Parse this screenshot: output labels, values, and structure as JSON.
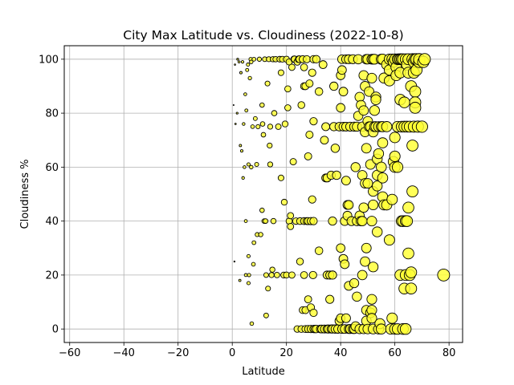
{
  "chart_data": {
    "type": "scatter",
    "title": "City Max Latitude vs. Cloudiness (2022-10-8)",
    "xlabel": "Latitude",
    "ylabel": "Cloudiness %",
    "xlim": [
      -62,
      85
    ],
    "ylim": [
      -5,
      105
    ],
    "xticks": [
      -60,
      -40,
      -20,
      0,
      20,
      40,
      60,
      80
    ],
    "yticks": [
      0,
      20,
      40,
      60,
      80,
      100
    ],
    "grid": true,
    "marker_face_color": "#ffff33",
    "marker_edge_color": "#000000",
    "marker_size_encodes": "latitude",
    "points": [
      [
        0.5,
        83
      ],
      [
        0.8,
        25
      ],
      [
        1,
        98
      ],
      [
        1.2,
        76
      ],
      [
        1.8,
        80
      ],
      [
        2,
        100
      ],
      [
        2.5,
        99
      ],
      [
        2.8,
        18
      ],
      [
        3,
        68
      ],
      [
        3.2,
        95
      ],
      [
        3.5,
        66
      ],
      [
        3.8,
        99
      ],
      [
        4,
        56
      ],
      [
        4.2,
        76
      ],
      [
        4.5,
        60
      ],
      [
        4.8,
        87
      ],
      [
        5,
        40
      ],
      [
        5,
        20
      ],
      [
        5.2,
        81
      ],
      [
        5.5,
        96
      ],
      [
        5.8,
        98
      ],
      [
        6,
        61
      ],
      [
        6,
        27
      ],
      [
        6,
        17
      ],
      [
        6.2,
        20
      ],
      [
        6.5,
        93
      ],
      [
        6.8,
        100
      ],
      [
        7,
        99
      ],
      [
        7,
        60
      ],
      [
        7.2,
        2
      ],
      [
        7.5,
        75
      ],
      [
        7.8,
        24
      ],
      [
        8,
        32
      ],
      [
        8,
        100
      ],
      [
        8.5,
        78
      ],
      [
        9,
        61
      ],
      [
        9.2,
        35
      ],
      [
        9.5,
        75
      ],
      [
        10,
        100
      ],
      [
        10.5,
        35
      ],
      [
        11,
        83
      ],
      [
        11,
        44
      ],
      [
        11.2,
        76
      ],
      [
        11.5,
        72
      ],
      [
        11.8,
        40
      ],
      [
        12,
        100
      ],
      [
        12.3,
        40
      ],
      [
        12.5,
        5
      ],
      [
        12.5,
        20
      ],
      [
        13,
        91
      ],
      [
        13.2,
        15
      ],
      [
        13.5,
        100
      ],
      [
        13.8,
        68
      ],
      [
        14,
        61
      ],
      [
        14,
        75
      ],
      [
        14.5,
        20
      ],
      [
        14.8,
        22
      ],
      [
        15,
        100
      ],
      [
        15.2,
        40
      ],
      [
        15.5,
        80
      ],
      [
        16,
        100
      ],
      [
        16.5,
        20
      ],
      [
        17,
        75
      ],
      [
        17.5,
        100
      ],
      [
        18,
        95
      ],
      [
        18,
        56
      ],
      [
        18.5,
        100
      ],
      [
        19,
        20
      ],
      [
        19.2,
        47
      ],
      [
        19.5,
        76
      ],
      [
        20,
        100
      ],
      [
        20,
        20
      ],
      [
        20.5,
        89
      ],
      [
        20.5,
        82
      ],
      [
        21,
        99
      ],
      [
        21,
        40
      ],
      [
        21.5,
        42
      ],
      [
        21.5,
        38
      ],
      [
        22,
        20
      ],
      [
        22,
        97
      ],
      [
        22.5,
        62
      ],
      [
        22.8,
        100
      ],
      [
        23,
        100
      ],
      [
        23.5,
        40
      ],
      [
        24,
        0
      ],
      [
        24,
        99
      ],
      [
        24.5,
        100
      ],
      [
        24.8,
        100
      ],
      [
        25,
        25
      ],
      [
        25,
        40
      ],
      [
        25.5,
        83
      ],
      [
        25.5,
        0
      ],
      [
        26,
        100
      ],
      [
        26,
        100
      ],
      [
        26,
        7
      ],
      [
        26.5,
        40
      ],
      [
        26.5,
        97
      ],
      [
        26.5,
        90
      ],
      [
        26.5,
        20
      ],
      [
        27,
        0
      ],
      [
        27,
        90
      ],
      [
        27,
        7
      ],
      [
        27.5,
        100
      ],
      [
        27.5,
        40
      ],
      [
        28,
        11
      ],
      [
        28,
        64
      ],
      [
        28,
        40
      ],
      [
        28,
        0
      ],
      [
        28.5,
        72
      ],
      [
        28.5,
        91
      ],
      [
        29,
        8
      ],
      [
        29,
        40
      ],
      [
        29,
        0
      ],
      [
        29.5,
        48
      ],
      [
        29.5,
        95
      ],
      [
        29.8,
        20
      ],
      [
        30,
        100
      ],
      [
        30,
        77
      ],
      [
        30,
        6
      ],
      [
        30,
        40
      ],
      [
        30,
        0
      ],
      [
        30.5,
        0
      ],
      [
        31,
        100
      ],
      [
        31,
        0
      ],
      [
        32,
        88
      ],
      [
        32,
        29
      ],
      [
        32.5,
        0
      ],
      [
        33,
        0
      ],
      [
        33,
        0
      ],
      [
        33.5,
        98
      ],
      [
        34,
        70
      ],
      [
        34,
        0
      ],
      [
        34.5,
        56
      ],
      [
        34.5,
        75
      ],
      [
        35,
        0
      ],
      [
        35,
        20
      ],
      [
        35,
        56
      ],
      [
        35.5,
        0
      ],
      [
        36,
        20
      ],
      [
        36,
        11
      ],
      [
        36.5,
        0
      ],
      [
        36.5,
        57
      ],
      [
        37,
        40
      ],
      [
        37,
        0
      ],
      [
        37,
        20
      ],
      [
        37.5,
        90
      ],
      [
        37.5,
        75
      ],
      [
        38,
        0
      ],
      [
        38,
        67
      ],
      [
        38.5,
        57
      ],
      [
        39,
        0
      ],
      [
        39.5,
        75
      ],
      [
        39.5,
        3
      ],
      [
        40,
        82
      ],
      [
        40,
        94
      ],
      [
        40,
        4
      ],
      [
        40,
        30
      ],
      [
        40.5,
        0
      ],
      [
        40.5,
        100
      ],
      [
        40.5,
        96
      ],
      [
        41,
        26
      ],
      [
        41,
        75
      ],
      [
        41,
        88
      ],
      [
        41.5,
        40
      ],
      [
        41.5,
        24
      ],
      [
        41.5,
        0
      ],
      [
        42,
        4
      ],
      [
        42,
        75
      ],
      [
        42,
        100
      ],
      [
        42,
        55
      ],
      [
        42.5,
        46
      ],
      [
        42.5,
        42
      ],
      [
        43,
        0
      ],
      [
        43,
        46
      ],
      [
        43,
        16
      ],
      [
        43,
        100
      ],
      [
        43.5,
        75
      ],
      [
        43.5,
        0
      ],
      [
        44,
        40
      ],
      [
        44.5,
        0
      ],
      [
        44.5,
        100
      ],
      [
        45,
        75
      ],
      [
        45,
        17
      ],
      [
        45,
        0
      ],
      [
        45.5,
        60
      ],
      [
        45.5,
        1
      ],
      [
        46,
        12
      ],
      [
        46,
        75
      ],
      [
        46,
        40
      ],
      [
        46.5,
        79
      ],
      [
        46.5,
        100
      ],
      [
        47,
        42
      ],
      [
        47,
        0
      ],
      [
        47,
        86
      ],
      [
        47.5,
        83
      ],
      [
        47.5,
        40
      ],
      [
        48,
        57
      ],
      [
        48,
        75
      ],
      [
        48,
        40
      ],
      [
        48,
        20
      ],
      [
        48.5,
        94
      ],
      [
        48.5,
        81
      ],
      [
        48.5,
        45
      ],
      [
        48.5,
        0
      ],
      [
        49,
        73
      ],
      [
        49,
        90
      ],
      [
        49,
        54
      ],
      [
        49,
        25
      ],
      [
        49.5,
        100
      ],
      [
        49.5,
        67
      ],
      [
        49.5,
        30
      ],
      [
        49.5,
        7
      ],
      [
        49.5,
        3
      ],
      [
        50,
        100
      ],
      [
        50,
        77
      ],
      [
        50,
        54
      ],
      [
        50,
        0
      ],
      [
        50.5,
        88
      ],
      [
        50.5,
        75
      ],
      [
        51,
        75
      ],
      [
        51,
        61
      ],
      [
        51,
        6
      ],
      [
        51.5,
        100
      ],
      [
        51.5,
        93
      ],
      [
        51.5,
        40
      ],
      [
        51.5,
        11
      ],
      [
        51.5,
        7
      ],
      [
        51.5,
        4
      ],
      [
        52,
        100
      ],
      [
        52,
        73
      ],
      [
        52,
        51
      ],
      [
        52,
        46
      ],
      [
        52,
        23
      ],
      [
        52,
        0
      ],
      [
        52.5,
        100
      ],
      [
        52.5,
        81
      ],
      [
        52.5,
        75
      ],
      [
        53,
        86
      ],
      [
        53,
        85
      ],
      [
        53,
        75
      ],
      [
        53.5,
        63
      ],
      [
        53.5,
        57
      ],
      [
        53.5,
        53
      ],
      [
        53.5,
        36
      ],
      [
        54,
        75
      ],
      [
        54,
        65
      ],
      [
        54,
        0
      ],
      [
        54.5,
        2
      ],
      [
        55,
        100
      ],
      [
        55,
        75
      ],
      [
        55,
        60
      ],
      [
        55,
        0
      ],
      [
        55.5,
        100
      ],
      [
        55.5,
        69
      ],
      [
        55.5,
        75
      ],
      [
        55.5,
        56
      ],
      [
        55.5,
        49
      ],
      [
        56,
        93
      ],
      [
        56,
        46
      ],
      [
        57,
        75
      ],
      [
        57,
        98
      ],
      [
        57,
        46
      ],
      [
        58,
        100
      ],
      [
        58,
        96
      ],
      [
        58,
        92
      ],
      [
        58,
        33
      ],
      [
        58.5,
        0
      ],
      [
        59,
        100
      ],
      [
        59,
        48
      ],
      [
        59,
        4
      ],
      [
        59.5,
        99
      ],
      [
        59.5,
        62
      ],
      [
        60,
        100
      ],
      [
        60,
        71
      ],
      [
        60,
        64
      ],
      [
        60,
        60
      ],
      [
        60,
        0
      ],
      [
        60.5,
        97
      ],
      [
        60.5,
        94
      ],
      [
        61,
        100
      ],
      [
        61,
        75
      ],
      [
        61,
        60
      ],
      [
        61,
        0
      ],
      [
        61.5,
        100
      ],
      [
        62,
        100
      ],
      [
        62,
        95
      ],
      [
        62,
        85
      ],
      [
        62,
        20
      ],
      [
        62.5,
        100
      ],
      [
        62.5,
        75
      ],
      [
        62.5,
        40
      ],
      [
        63,
        100
      ],
      [
        63,
        40
      ],
      [
        63,
        0
      ],
      [
        63.5,
        84
      ],
      [
        63.5,
        75
      ],
      [
        63.5,
        15
      ],
      [
        64,
        100
      ],
      [
        64,
        40
      ],
      [
        64,
        20
      ],
      [
        64,
        0
      ],
      [
        64.5,
        98
      ],
      [
        64.5,
        75
      ],
      [
        64.5,
        40
      ],
      [
        65,
        100
      ],
      [
        65,
        95
      ],
      [
        65,
        45
      ],
      [
        65,
        28
      ],
      [
        65.5,
        75
      ],
      [
        65.5,
        20
      ],
      [
        66,
        90
      ],
      [
        66,
        21
      ],
      [
        66,
        15
      ],
      [
        66.5,
        100
      ],
      [
        66.5,
        68
      ],
      [
        66.5,
        51
      ],
      [
        67,
        99
      ],
      [
        67,
        95
      ],
      [
        67,
        75
      ],
      [
        67.5,
        100
      ],
      [
        67.5,
        88
      ],
      [
        67.5,
        84
      ],
      [
        67.5,
        82
      ],
      [
        68,
        100
      ],
      [
        68,
        96
      ],
      [
        68.5,
        75
      ],
      [
        69,
        99
      ],
      [
        69,
        100
      ],
      [
        70,
        75
      ],
      [
        70.5,
        99
      ],
      [
        71,
        100
      ],
      [
        78,
        20
      ]
    ]
  }
}
